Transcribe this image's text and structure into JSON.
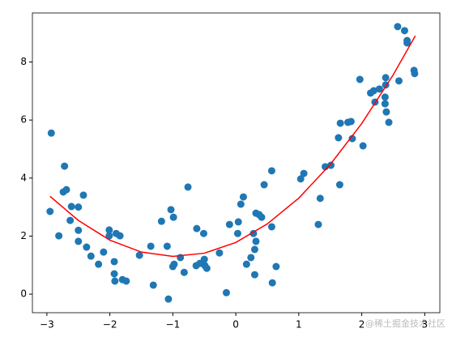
{
  "chart_data": {
    "type": "scatter",
    "points": {
      "color": "#1f77b4",
      "x": [
        -2.93,
        -2.95,
        -2.81,
        -2.72,
        -2.74,
        -2.69,
        -2.63,
        -2.61,
        -2.5,
        -2.5,
        -2.5,
        -2.42,
        -2.37,
        -2.3,
        -2.18,
        -2.1,
        -2.01,
        -2.01,
        -1.9,
        -1.84,
        -1.93,
        -1.93,
        -1.92,
        -1.8,
        -1.74,
        -1.53,
        -1.35,
        -1.31,
        -1.18,
        -1.09,
        -1.07,
        -1.03,
        -0.99,
        -1.0,
        -0.98,
        -0.88,
        -0.82,
        -0.76,
        -0.62,
        -0.63,
        -0.57,
        -0.51,
        -0.5,
        -0.49,
        -0.46,
        -0.26,
        -0.15,
        -0.1,
        0.03,
        0.04,
        0.08,
        0.12,
        0.17,
        0.24,
        0.28,
        0.3,
        0.32,
        0.3,
        0.32,
        0.37,
        0.41,
        0.45,
        0.57,
        0.57,
        0.58,
        0.64,
        1.03,
        1.08,
        1.31,
        1.34,
        1.42,
        1.51,
        1.63,
        1.65,
        1.66,
        1.78,
        1.83,
        1.85,
        1.97,
        2.02,
        2.14,
        2.19,
        2.21,
        2.28,
        2.38,
        2.38,
        2.37,
        2.37,
        2.39,
        2.43,
        2.59,
        2.57,
        2.68,
        2.72,
        2.72,
        2.83,
        2.84
      ],
      "y": [
        5.55,
        2.85,
        2.01,
        4.41,
        3.52,
        3.6,
        2.54,
        3.02,
        3.0,
        2.2,
        1.82,
        3.41,
        1.62,
        1.31,
        1.03,
        1.45,
        2.21,
        2.01,
        2.09,
        2.01,
        1.12,
        0.7,
        0.45,
        0.5,
        0.45,
        1.34,
        1.65,
        0.31,
        2.51,
        1.65,
        -0.17,
        2.91,
        2.65,
        0.95,
        1.03,
        1.26,
        0.75,
        3.69,
        2.26,
        0.98,
        1.06,
        2.09,
        1.2,
        0.98,
        0.89,
        1.42,
        0.05,
        2.4,
        2.09,
        2.49,
        3.1,
        3.35,
        1.03,
        1.26,
        2.09,
        1.54,
        1.82,
        0.67,
        2.79,
        2.74,
        2.65,
        3.77,
        2.32,
        4.25,
        0.39,
        0.95,
        3.97,
        4.16,
        2.4,
        3.3,
        4.39,
        4.44,
        5.39,
        3.77,
        5.89,
        5.92,
        5.95,
        5.36,
        7.4,
        5.11,
        6.93,
        7.01,
        6.62,
        7.07,
        7.21,
        7.46,
        6.79,
        6.56,
        6.28,
        5.92,
        7.35,
        9.22,
        9.08,
        8.74,
        8.66,
        7.71,
        7.6
      ]
    },
    "line": {
      "color": "#ff0000",
      "x": [
        -2.95,
        -2.5,
        -2,
        -1.5,
        -1,
        -0.5,
        0,
        0.5,
        1,
        1.5,
        2,
        2.5,
        2.85
      ],
      "y": [
        3.37,
        2.54,
        1.86,
        1.45,
        1.3,
        1.41,
        1.78,
        2.42,
        3.31,
        4.47,
        5.88,
        7.56,
        8.9
      ]
    },
    "xlim": [
      -3.23,
      3.24
    ],
    "ylim": [
      -0.64,
      9.69
    ],
    "xticks": [
      {
        "value": -3,
        "label": "−3"
      },
      {
        "value": -2,
        "label": "−2"
      },
      {
        "value": -1,
        "label": "−1"
      },
      0,
      1,
      2,
      3
    ],
    "yticks": [
      0,
      2,
      4,
      6,
      8
    ],
    "watermark": "@稀土掘金技术社区"
  }
}
